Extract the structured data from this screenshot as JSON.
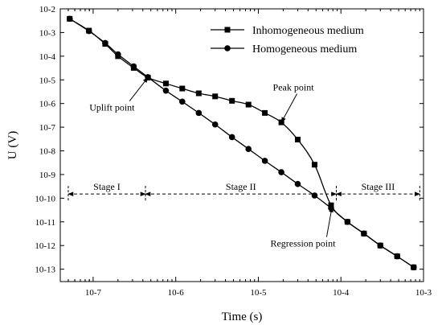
{
  "chart_data": {
    "type": "line",
    "xlabel": "Time (s)",
    "ylabel": "U (V)",
    "x_scale": "log",
    "y_scale": "log",
    "xlim": [
      4e-08,
      0.001
    ],
    "ylim": [
      3e-14,
      0.01
    ],
    "grid": false,
    "legend_position": "top-right",
    "x_ticks": [
      {
        "value": 1e-07,
        "label": "10-7"
      },
      {
        "value": 1e-06,
        "label": "10-6"
      },
      {
        "value": 1e-05,
        "label": "10-5"
      },
      {
        "value": 0.0001,
        "label": "10-4"
      },
      {
        "value": 0.001,
        "label": "10-3"
      }
    ],
    "y_ticks": [
      {
        "value": 1e-13,
        "label": "10-13"
      },
      {
        "value": 1e-12,
        "label": "10-12"
      },
      {
        "value": 1e-11,
        "label": "10-11"
      },
      {
        "value": 1e-10,
        "label": "10-10"
      },
      {
        "value": 1e-09,
        "label": "10-9"
      },
      {
        "value": 1e-08,
        "label": "10-8"
      },
      {
        "value": 1e-07,
        "label": "10-7"
      },
      {
        "value": 1e-06,
        "label": "10-6"
      },
      {
        "value": 1e-05,
        "label": "10-5"
      },
      {
        "value": 0.0001,
        "label": "10-4"
      },
      {
        "value": 0.001,
        "label": "10-3"
      },
      {
        "value": 0.01,
        "label": "10-2"
      }
    ],
    "series": [
      {
        "name": "Inhomogeneous medium",
        "marker": "square",
        "x": [
          5.2e-08,
          8.9e-08,
          1.4e-07,
          2e-07,
          3.1e-07,
          4.6e-07,
          7.6e-07,
          1.2e-06,
          1.9e-06,
          3e-06,
          4.8e-06,
          7.6e-06,
          1.2e-05,
          1.9e-05,
          3e-05,
          4.8e-05,
          7.6e-05,
          0.00012,
          0.00019,
          0.0003,
          0.00048,
          0.00076
        ],
        "y": [
          0.0038,
          0.0012,
          0.00033,
          0.0001,
          3.2e-05,
          1.25e-05,
          7e-06,
          4.3e-06,
          2.7e-06,
          2e-06,
          1.3e-06,
          9e-07,
          4e-07,
          1.6e-07,
          3e-08,
          2.6e-09,
          5e-11,
          1e-11,
          3.2e-12,
          1e-12,
          3.5e-13,
          1.2e-13
        ]
      },
      {
        "name": "Homogeneous medium",
        "marker": "circle",
        "x": [
          5.2e-08,
          8.9e-08,
          1.4e-07,
          2e-07,
          3.1e-07,
          4.6e-07,
          7.6e-07,
          1.2e-06,
          1.9e-06,
          3e-06,
          4.8e-06,
          7.6e-06,
          1.2e-05,
          1.9e-05,
          3e-05,
          4.8e-05,
          7.6e-05,
          0.00012,
          0.00019,
          0.0003,
          0.00048,
          0.00076
        ],
        "y": [
          0.0038,
          0.00115,
          0.00036,
          0.00012,
          3.7e-05,
          1.3e-05,
          3.5e-06,
          1.2e-06,
          4e-07,
          1.3e-07,
          3.8e-08,
          1.2e-08,
          3.8e-09,
          1.25e-09,
          4e-10,
          1.3e-10,
          3.8e-11,
          1e-11,
          3.2e-12,
          1e-12,
          3.5e-13,
          1.2e-13
        ]
      }
    ],
    "stages": [
      {
        "label": "Stage I",
        "x_start": 5e-08,
        "x_end": 4.3e-07,
        "y": 1.5e-10
      },
      {
        "label": "Stage II",
        "x_start": 4.3e-07,
        "x_end": 8.8e-05,
        "y": 1.5e-10
      },
      {
        "label": "Stage III",
        "x_start": 8.8e-05,
        "x_end": 0.0009,
        "y": 1.5e-10
      }
    ],
    "annotations": [
      {
        "text": "Uplift point",
        "point_x": 4.6e-07,
        "point_y": 1.25e-05,
        "text_x": 9e-08,
        "text_y": 5e-07
      },
      {
        "text": "Peak point",
        "point_x": 1.9e-05,
        "point_y": 1.6e-07,
        "text_x": 1.5e-05,
        "text_y": 3.5e-06
      },
      {
        "text": "Regression point",
        "point_x": 7.8e-05,
        "point_y": 4.2e-11,
        "text_x": 1.4e-05,
        "text_y": 9e-13
      }
    ]
  }
}
